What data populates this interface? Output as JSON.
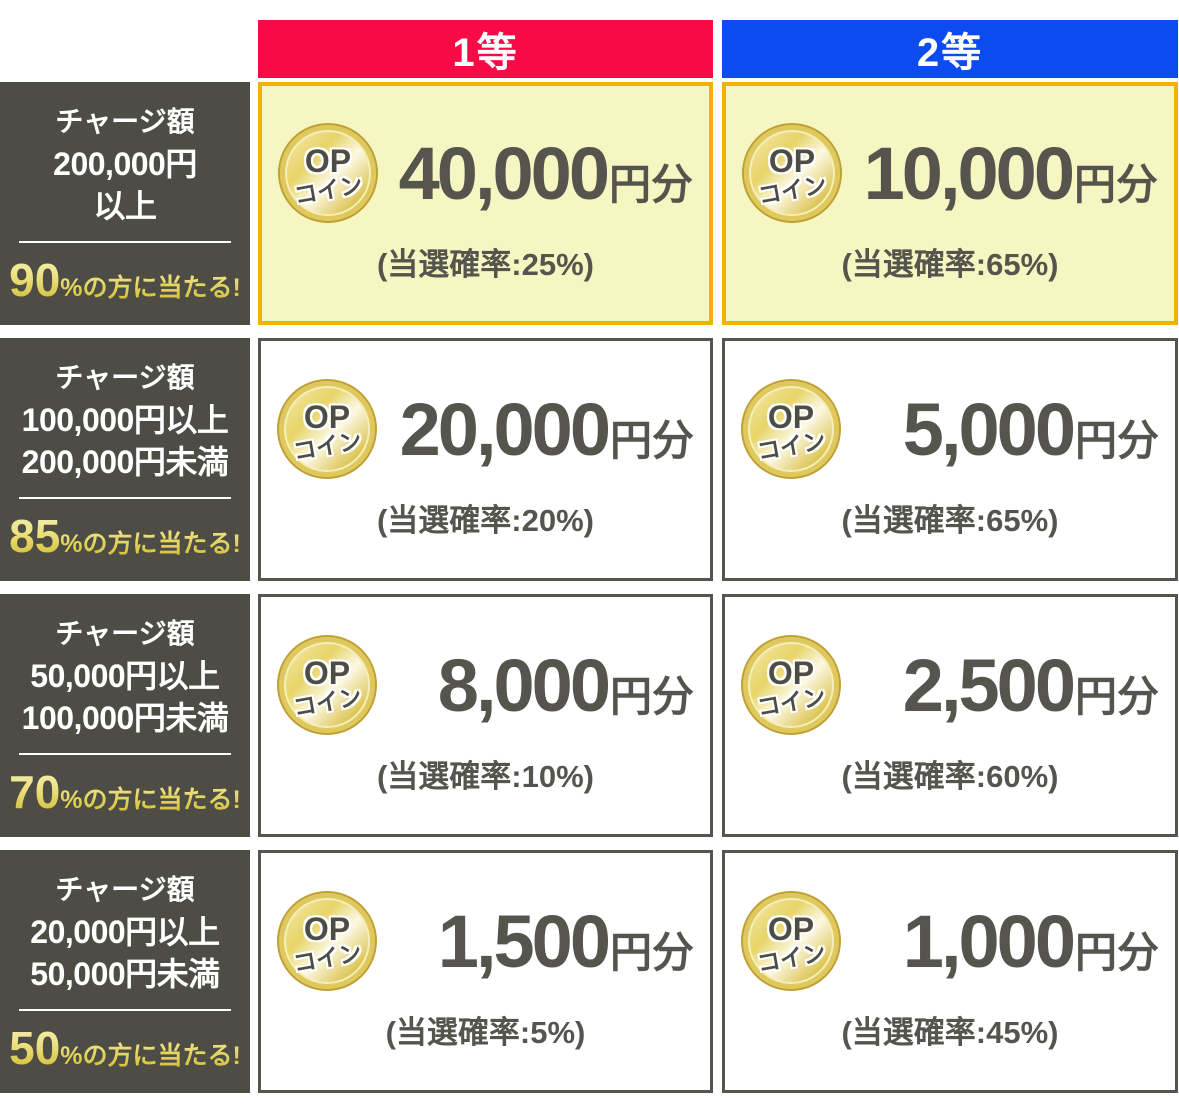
{
  "colors": {
    "first_prize_red": "#f80a46",
    "second_prize_blue": "#0b4bf0",
    "label_background_dark": "#4d4d46",
    "highlight_cell_background": "#f6f6c3",
    "highlight_cell_border": "#f3b200",
    "cell_border_gray": "#55554e",
    "text_dark_gray": "#55554e",
    "win_rate_gold": "#e0cc42",
    "coin_gold": "#e7d368"
  },
  "headers": {
    "first": "1等",
    "second": "2等"
  },
  "coin": {
    "line1": "OP",
    "line2": "コイン"
  },
  "rows": [
    {
      "charge_title": "チャージ額",
      "charge_range": "200,000円\n以上",
      "win_rate_number": "90",
      "win_rate_suffix": "%の方に当たる!",
      "first": {
        "amount": "40,000",
        "unit": "円分",
        "probability": "(当選確率:25%)"
      },
      "second": {
        "amount": "10,000",
        "unit": "円分",
        "probability": "(当選確率:65%)"
      }
    },
    {
      "charge_title": "チャージ額",
      "charge_range": "100,000円以上\n200,000円未満",
      "win_rate_number": "85",
      "win_rate_suffix": "%の方に当たる!",
      "first": {
        "amount": "20,000",
        "unit": "円分",
        "probability": "(当選確率:20%)"
      },
      "second": {
        "amount": "5,000",
        "unit": "円分",
        "probability": "(当選確率:65%)"
      }
    },
    {
      "charge_title": "チャージ額",
      "charge_range": "50,000円以上\n100,000円未満",
      "win_rate_number": "70",
      "win_rate_suffix": "%の方に当たる!",
      "first": {
        "amount": "8,000",
        "unit": "円分",
        "probability": "(当選確率:10%)"
      },
      "second": {
        "amount": "2,500",
        "unit": "円分",
        "probability": "(当選確率:60%)"
      }
    },
    {
      "charge_title": "チャージ額",
      "charge_range": "20,000円以上\n50,000円未満",
      "win_rate_number": "50",
      "win_rate_suffix": "%の方に当たる!",
      "first": {
        "amount": "1,500",
        "unit": "円分",
        "probability": "(当選確率:5%)"
      },
      "second": {
        "amount": "1,000",
        "unit": "円分",
        "probability": "(当選確率:45%)"
      }
    }
  ]
}
